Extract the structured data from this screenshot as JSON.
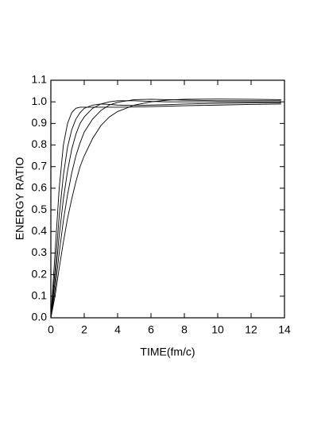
{
  "chart_data": {
    "type": "line",
    "xlabel": "TIME(fm/c)",
    "ylabel": "ENERGY  RATIO",
    "x": [
      0,
      0.25,
      0.5,
      0.75,
      1,
      1.25,
      1.5,
      1.75,
      2,
      2.5,
      3,
      3.5,
      4,
      5,
      6,
      7,
      8,
      10,
      12,
      13.8
    ],
    "series": [
      {
        "color": "#000000",
        "values": [
          0,
          0.3,
          0.6,
          0.8,
          0.9,
          0.95,
          0.97,
          0.975,
          0.975,
          0.975,
          0.975,
          0.975,
          0.975,
          0.976,
          0.978,
          0.98,
          0.982,
          0.985,
          0.988,
          0.99
        ]
      },
      {
        "color": "#000000",
        "values": [
          0,
          0.22,
          0.47,
          0.66,
          0.79,
          0.87,
          0.92,
          0.95,
          0.97,
          0.985,
          0.99,
          0.988,
          0.985,
          0.983,
          0.985,
          0.987,
          0.99,
          0.993,
          0.995,
          0.995
        ]
      },
      {
        "color": "#000000",
        "values": [
          0,
          0.17,
          0.38,
          0.55,
          0.68,
          0.78,
          0.85,
          0.9,
          0.93,
          0.97,
          0.99,
          1.0,
          1.005,
          1.005,
          1.002,
          1.0,
          1.0,
          1.0,
          1.0,
          1.0
        ]
      },
      {
        "color": "#000000",
        "values": [
          0,
          0.13,
          0.3,
          0.45,
          0.57,
          0.67,
          0.75,
          0.81,
          0.86,
          0.92,
          0.96,
          0.985,
          0.998,
          1.01,
          1.012,
          1.01,
          1.008,
          1.005,
          1.005,
          1.005
        ]
      },
      {
        "color": "#000000",
        "values": [
          0,
          0.1,
          0.23,
          0.35,
          0.46,
          0.55,
          0.63,
          0.7,
          0.75,
          0.83,
          0.89,
          0.93,
          0.955,
          0.985,
          1.0,
          1.008,
          1.012,
          1.013,
          1.012,
          1.01
        ]
      }
    ],
    "xlim": [
      0,
      14
    ],
    "xticks": [
      0,
      2,
      4,
      6,
      8,
      10,
      12,
      14
    ],
    "ylim": [
      0,
      1.1
    ],
    "yticks": [
      {
        "value": 0,
        "label": "0.0"
      },
      0.1,
      0.2,
      0.3,
      0.4,
      0.5,
      0.6,
      0.7,
      0.8,
      0.9,
      {
        "value": 1,
        "label": "1.0"
      },
      1.1
    ],
    "grid": false
  }
}
